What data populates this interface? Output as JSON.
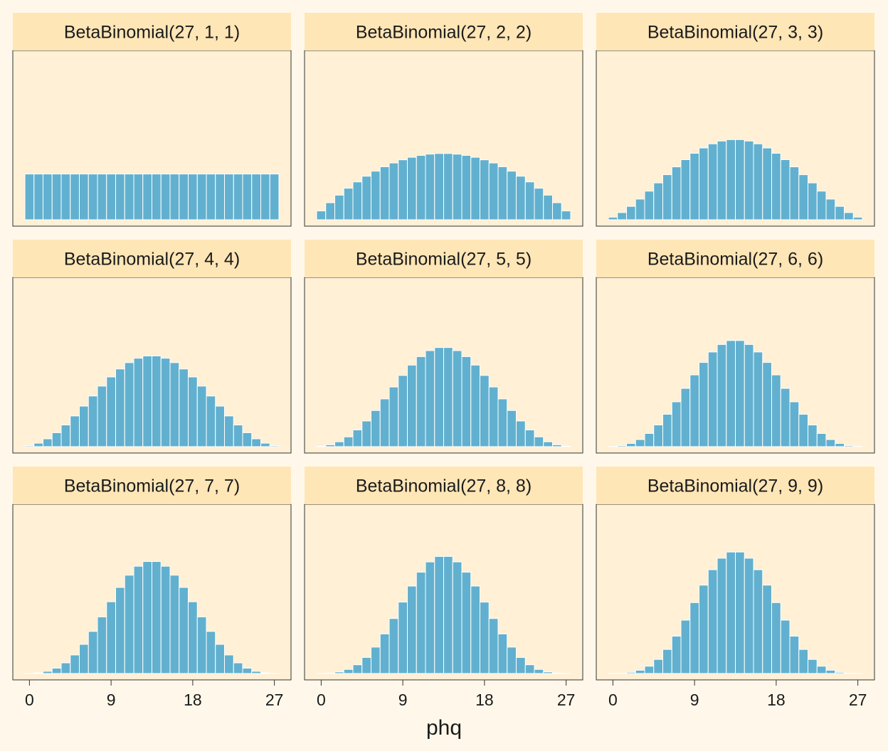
{
  "chart_data": {
    "type": "bar",
    "layout": "facet-grid 3x3",
    "xlabel": "phq",
    "ylabel": "",
    "xlim": [
      0,
      27
    ],
    "x_ticks": [
      "0",
      "9",
      "18",
      "27"
    ],
    "grid": false,
    "n": 27,
    "x": [
      0,
      1,
      2,
      3,
      4,
      5,
      6,
      7,
      8,
      9,
      10,
      11,
      12,
      13,
      14,
      15,
      16,
      17,
      18,
      19,
      20,
      21,
      22,
      23,
      24,
      25,
      26,
      27
    ],
    "ylim": [
      0,
      0.126
    ],
    "colors": {
      "bar": "#62b0cf",
      "bar_edge": "#ffffff",
      "strip": "#ffe6b6",
      "panel": "#fff0d6",
      "page": "#fff8ea",
      "border": "#333333"
    },
    "panels": [
      {
        "title": "BetaBinomial(27, 1, 1)",
        "alpha": 1,
        "beta": 1
      },
      {
        "title": "BetaBinomial(27, 2, 2)",
        "alpha": 2,
        "beta": 2
      },
      {
        "title": "BetaBinomial(27, 3, 3)",
        "alpha": 3,
        "beta": 3
      },
      {
        "title": "BetaBinomial(27, 4, 4)",
        "alpha": 4,
        "beta": 4
      },
      {
        "title": "BetaBinomial(27, 5, 5)",
        "alpha": 5,
        "beta": 5
      },
      {
        "title": "BetaBinomial(27, 6, 6)",
        "alpha": 6,
        "beta": 6
      },
      {
        "title": "BetaBinomial(27, 7, 7)",
        "alpha": 7,
        "beta": 7
      },
      {
        "title": "BetaBinomial(27, 8, 8)",
        "alpha": 8,
        "beta": 8
      },
      {
        "title": "BetaBinomial(27, 9, 9)",
        "alpha": 9,
        "beta": 9
      }
    ]
  }
}
